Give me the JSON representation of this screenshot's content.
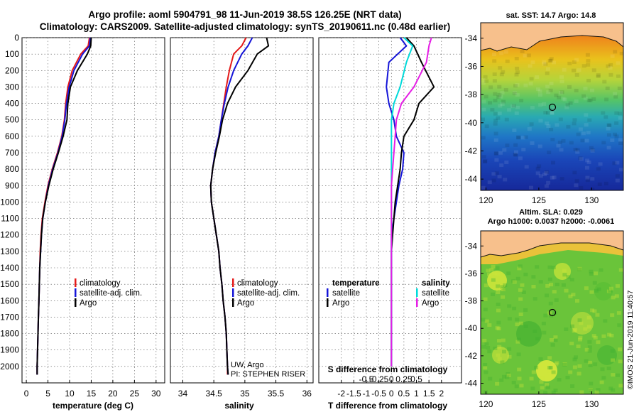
{
  "header": {
    "line1": "Argo profile: aoml 5904791_98 11-Jun-2019 38.5S 126.25E (NRT data)",
    "line2": "Climatology: CARS2009. Satellite-adjusted climatology: synTS_20190611.nc (0.48d earlier)"
  },
  "depth_ticks": [
    "0",
    "100",
    "200",
    "300",
    "400",
    "500",
    "600",
    "700",
    "800",
    "900",
    "1000",
    "1100",
    "1200",
    "1300",
    "1400",
    "1500",
    "1600",
    "1700",
    "1800",
    "1900",
    "2000"
  ],
  "legend": {
    "clim": "climatology",
    "sat": "satellite-adj. clim.",
    "argo": "Argo"
  },
  "diff_legend": {
    "temp_title": "temperature",
    "sal_title": "salinity",
    "satellite": "satellite",
    "argo": "Argo"
  },
  "credit": {
    "line1": "UW, Argo",
    "line2": "PI: STEPHEN RISER"
  },
  "stamp": "©IMOS 21-Jun-2019 11:40:57",
  "colors": {
    "climatology": "#e41a1a",
    "satellite": "#1515d8",
    "argo": "#000000",
    "t_sat": "#1515d8",
    "s_sat": "#00dada",
    "s_argo": "#e61ee6"
  },
  "chart_data": [
    {
      "type": "line",
      "xlabel": "temperature (deg C)",
      "xticks": [
        "0",
        "5",
        "10",
        "15",
        "20",
        "25",
        "30"
      ],
      "xlim": [
        -1,
        32
      ],
      "ylim": [
        2100,
        0
      ],
      "series": [
        {
          "name": "climatology",
          "x": [
            14.6,
            14.3,
            12.6,
            10.6,
            9.6,
            9.1,
            8.8,
            8.2,
            7.2,
            6.0,
            5.0,
            4.3,
            3.7,
            3.4,
            3.2,
            3.1,
            3.0,
            2.9,
            2.8,
            2.7,
            2.6,
            2.5,
            2.5
          ],
          "y": [
            0,
            50,
            100,
            200,
            300,
            400,
            500,
            600,
            700,
            800,
            900,
            1000,
            1100,
            1200,
            1300,
            1400,
            1500,
            1600,
            1700,
            1800,
            1900,
            2000,
            2050
          ]
        },
        {
          "name": "satellite-adj. clim.",
          "x": [
            14.8,
            14.6,
            13.0,
            11.0,
            9.9,
            9.3,
            8.9,
            8.3,
            7.3,
            6.1,
            5.1,
            4.4,
            3.8,
            3.5,
            3.3,
            3.1,
            3.0,
            2.9,
            2.8,
            2.7,
            2.6,
            2.5,
            2.5
          ],
          "y": [
            0,
            50,
            100,
            200,
            300,
            400,
            500,
            600,
            700,
            800,
            900,
            1000,
            1100,
            1200,
            1300,
            1400,
            1500,
            1600,
            1700,
            1800,
            1900,
            2000,
            2050
          ]
        },
        {
          "name": "Argo",
          "x": [
            15.0,
            14.9,
            14.1,
            11.8,
            10.2,
            9.6,
            9.4,
            8.5,
            7.4,
            6.2,
            5.2,
            4.4,
            3.8,
            3.5,
            3.3,
            3.1,
            3.0,
            2.9,
            2.8,
            2.7,
            2.6,
            2.5,
            2.5
          ],
          "y": [
            0,
            50,
            100,
            200,
            300,
            400,
            500,
            600,
            700,
            800,
            900,
            1000,
            1100,
            1200,
            1300,
            1400,
            1500,
            1600,
            1700,
            1800,
            1900,
            2000,
            2050
          ]
        }
      ]
    },
    {
      "type": "line",
      "xlabel": "salinity",
      "xticks": [
        "34",
        "34.5",
        "35",
        "35.5",
        "36"
      ],
      "xlim": [
        33.8,
        36.1
      ],
      "ylim": [
        2100,
        0
      ],
      "series": [
        {
          "name": "climatology",
          "x": [
            35.02,
            34.95,
            34.82,
            34.75,
            34.7,
            34.66,
            34.62,
            34.58,
            34.52,
            34.48,
            34.45,
            34.46,
            34.5,
            34.54,
            34.58,
            34.6,
            34.63,
            34.65,
            34.68,
            34.7,
            34.71,
            34.72,
            34.72
          ],
          "y": [
            0,
            50,
            100,
            200,
            300,
            400,
            500,
            600,
            700,
            800,
            900,
            1000,
            1100,
            1200,
            1300,
            1400,
            1500,
            1600,
            1700,
            1800,
            1900,
            2000,
            2050
          ]
        },
        {
          "name": "satellite-adj. clim.",
          "x": [
            35.12,
            35.05,
            34.95,
            34.82,
            34.73,
            34.67,
            34.62,
            34.58,
            34.52,
            34.48,
            34.45,
            34.46,
            34.5,
            34.54,
            34.58,
            34.6,
            34.63,
            34.65,
            34.68,
            34.7,
            34.71,
            34.72,
            34.73
          ],
          "y": [
            0,
            50,
            100,
            200,
            300,
            400,
            500,
            600,
            700,
            800,
            900,
            1000,
            1100,
            1200,
            1300,
            1400,
            1500,
            1600,
            1700,
            1800,
            1900,
            2000,
            2050
          ]
        },
        {
          "name": "Argo",
          "x": [
            35.35,
            35.38,
            35.2,
            35.05,
            34.85,
            34.72,
            34.64,
            34.59,
            34.53,
            34.48,
            34.45,
            34.46,
            34.5,
            34.54,
            34.58,
            34.6,
            34.63,
            34.65,
            34.68,
            34.7,
            34.71,
            34.72,
            34.73
          ],
          "y": [
            0,
            50,
            100,
            200,
            300,
            400,
            500,
            600,
            700,
            800,
            900,
            1000,
            1100,
            1200,
            1300,
            1400,
            1500,
            1600,
            1700,
            1800,
            1900,
            2000,
            2050
          ]
        }
      ]
    },
    {
      "type": "line",
      "xlabel": "T difference from climatology",
      "xlabel2": "S difference from climatology",
      "xticks": [
        "-2",
        "-1.5",
        "-1",
        "-0.5",
        "0",
        "0.5",
        "1",
        "1.5",
        "2"
      ],
      "xticks_top": [
        "-0.5",
        "-0.25",
        "0",
        "0.25",
        "0.5"
      ],
      "xlim": [
        -2.9,
        2.8
      ],
      "ylim": [
        2100,
        0
      ],
      "series": [
        {
          "name": "temperature satellite",
          "x": [
            0.35,
            0.6,
            -0.1,
            -0.2,
            -0.1,
            0.1,
            0.2,
            0.5,
            0.45,
            0.3,
            0.2,
            0.1,
            0.0,
            0.0,
            0.0,
            0.0,
            0.0,
            0.0,
            0.0,
            0.0,
            0.0
          ],
          "y": [
            0,
            50,
            150,
            300,
            400,
            500,
            600,
            700,
            800,
            900,
            1000,
            1100,
            1200,
            1300,
            1400,
            1500,
            1600,
            1700,
            1800,
            1900,
            2000
          ]
        },
        {
          "name": "temperature Argo",
          "x": [
            0.6,
            0.9,
            1.2,
            1.7,
            1.1,
            0.9,
            0.5,
            0.4,
            0.35,
            0.25,
            0.15,
            0.1,
            0.05,
            0.0,
            0.0,
            0.0,
            0.0,
            0.0,
            0.0,
            0.0,
            0.0
          ],
          "y": [
            0,
            50,
            150,
            300,
            400,
            500,
            600,
            700,
            800,
            900,
            1000,
            1100,
            1200,
            1300,
            1400,
            1500,
            1600,
            1700,
            1800,
            1900,
            2000
          ]
        },
        {
          "name": "salinity satellite",
          "x": [
            0.5,
            0.85,
            0.6,
            0.35,
            0.1,
            0.0,
            0.0,
            0.0,
            0.0,
            0.0,
            0.0,
            0.0,
            0.0,
            0.0,
            0.0,
            0.0,
            0.0,
            0.0,
            0.0,
            0.0,
            0.0
          ],
          "y": [
            0,
            50,
            150,
            300,
            400,
            500,
            600,
            700,
            800,
            900,
            1000,
            1100,
            1200,
            1300,
            1400,
            1500,
            1600,
            1700,
            1800,
            1900,
            2000
          ]
        },
        {
          "name": "salinity Argo",
          "x": [
            1.6,
            1.5,
            1.4,
            0.9,
            0.4,
            0.2,
            0.15,
            0.1,
            0.05,
            0.0,
            0.0,
            0.0,
            0.0,
            0.0,
            0.0,
            0.0,
            0.0,
            0.0,
            0.0,
            0.0,
            0.0
          ],
          "y": [
            0,
            50,
            150,
            300,
            400,
            500,
            600,
            700,
            800,
            900,
            1000,
            1100,
            1200,
            1300,
            1400,
            1500,
            1600,
            1700,
            1800,
            1900,
            2000
          ]
        }
      ]
    },
    {
      "type": "heatmap",
      "title": "sat. SST: 14.7 Argo: 14.8",
      "xticks": [
        "120",
        "125",
        "130"
      ],
      "yticks": [
        "-34",
        "-36",
        "-38",
        "-40",
        "-42",
        "-44"
      ],
      "xlim": [
        119.5,
        133
      ],
      "ylim": [
        -44.8,
        -32.9
      ],
      "marker": [
        126.25,
        -38.5
      ]
    },
    {
      "type": "heatmap",
      "title": "Altim. SLA: 0.029",
      "subtitle": "Argo h1000: 0.0037 h2000: -0.0061",
      "xticks": [
        "120",
        "125",
        "130"
      ],
      "yticks": [
        "-34",
        "-36",
        "-38",
        "-40",
        "-42",
        "-44"
      ],
      "xlim": [
        119.5,
        133
      ],
      "ylim": [
        -44.8,
        -32.9
      ],
      "marker": [
        126.25,
        -38.5
      ]
    }
  ]
}
